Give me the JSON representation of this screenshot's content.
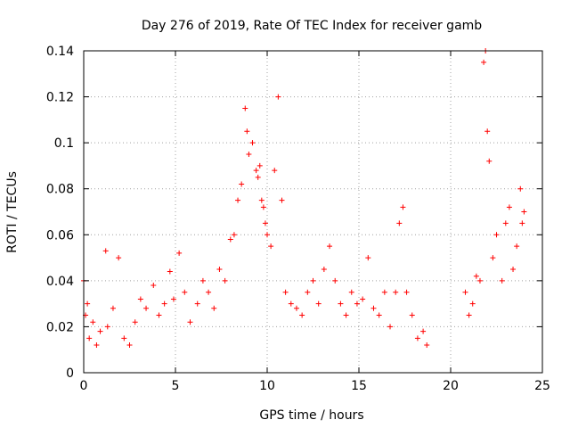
{
  "chart_data": {
    "type": "scatter",
    "title": "Day 276 of 2019, Rate Of TEC Index for receiver gamb",
    "xlabel": "GPS time / hours",
    "ylabel": "ROTI / TECUs",
    "xlim": [
      0,
      25
    ],
    "ylim": [
      0,
      0.14
    ],
    "xticks": [
      0,
      5,
      10,
      15,
      20,
      25
    ],
    "xtick_labels": [
      "0",
      "5",
      "10",
      "15",
      "20",
      "25"
    ],
    "yticks": [
      0,
      0.02,
      0.04,
      0.06,
      0.08,
      0.1,
      0.12,
      0.14
    ],
    "ytick_labels": [
      "0",
      "0.02",
      "0.04",
      "0.06",
      "0.08",
      "0.1",
      "0.12",
      "0.14"
    ],
    "grid": true,
    "marker": "plus",
    "color": "#ff0000",
    "series": [
      {
        "name": "ROTI",
        "x": [
          0.0,
          0.1,
          0.2,
          0.3,
          0.5,
          0.7,
          0.9,
          1.2,
          1.3,
          1.6,
          1.9,
          2.2,
          2.5,
          2.8,
          3.1,
          3.4,
          3.8,
          4.1,
          4.4,
          4.7,
          4.9,
          5.2,
          5.5,
          5.8,
          6.2,
          6.5,
          6.8,
          7.1,
          7.4,
          7.7,
          8.0,
          8.2,
          8.4,
          8.6,
          8.8,
          8.9,
          9.0,
          9.2,
          9.4,
          9.5,
          9.6,
          9.7,
          9.8,
          9.9,
          10.0,
          10.2,
          10.4,
          10.6,
          10.8,
          11.0,
          11.3,
          11.6,
          11.9,
          12.2,
          12.5,
          12.8,
          13.1,
          13.4,
          13.7,
          14.0,
          14.3,
          14.6,
          14.9,
          15.2,
          15.5,
          15.8,
          16.1,
          16.4,
          16.7,
          17.0,
          17.2,
          17.4,
          17.6,
          17.9,
          18.2,
          18.5,
          18.7,
          20.8,
          21.0,
          21.2,
          21.4,
          21.6,
          21.8,
          21.9,
          22.0,
          22.1,
          22.3,
          22.5,
          22.8,
          23.0,
          23.2,
          23.4,
          23.6,
          23.8,
          23.9,
          24.0
        ],
        "y": [
          0.04,
          0.025,
          0.03,
          0.015,
          0.022,
          0.012,
          0.018,
          0.053,
          0.02,
          0.028,
          0.05,
          0.015,
          0.012,
          0.022,
          0.032,
          0.028,
          0.038,
          0.025,
          0.03,
          0.044,
          0.032,
          0.052,
          0.035,
          0.022,
          0.03,
          0.04,
          0.035,
          0.028,
          0.045,
          0.04,
          0.058,
          0.06,
          0.075,
          0.082,
          0.115,
          0.105,
          0.095,
          0.1,
          0.088,
          0.085,
          0.09,
          0.075,
          0.072,
          0.065,
          0.06,
          0.055,
          0.088,
          0.12,
          0.075,
          0.035,
          0.03,
          0.028,
          0.025,
          0.035,
          0.04,
          0.03,
          0.045,
          0.055,
          0.04,
          0.03,
          0.025,
          0.035,
          0.03,
          0.032,
          0.05,
          0.028,
          0.025,
          0.035,
          0.02,
          0.035,
          0.065,
          0.072,
          0.035,
          0.025,
          0.015,
          0.018,
          0.012,
          0.035,
          0.025,
          0.03,
          0.042,
          0.04,
          0.135,
          0.14,
          0.105,
          0.092,
          0.05,
          0.06,
          0.04,
          0.065,
          0.072,
          0.045,
          0.055,
          0.08,
          0.065,
          0.07
        ]
      }
    ]
  }
}
